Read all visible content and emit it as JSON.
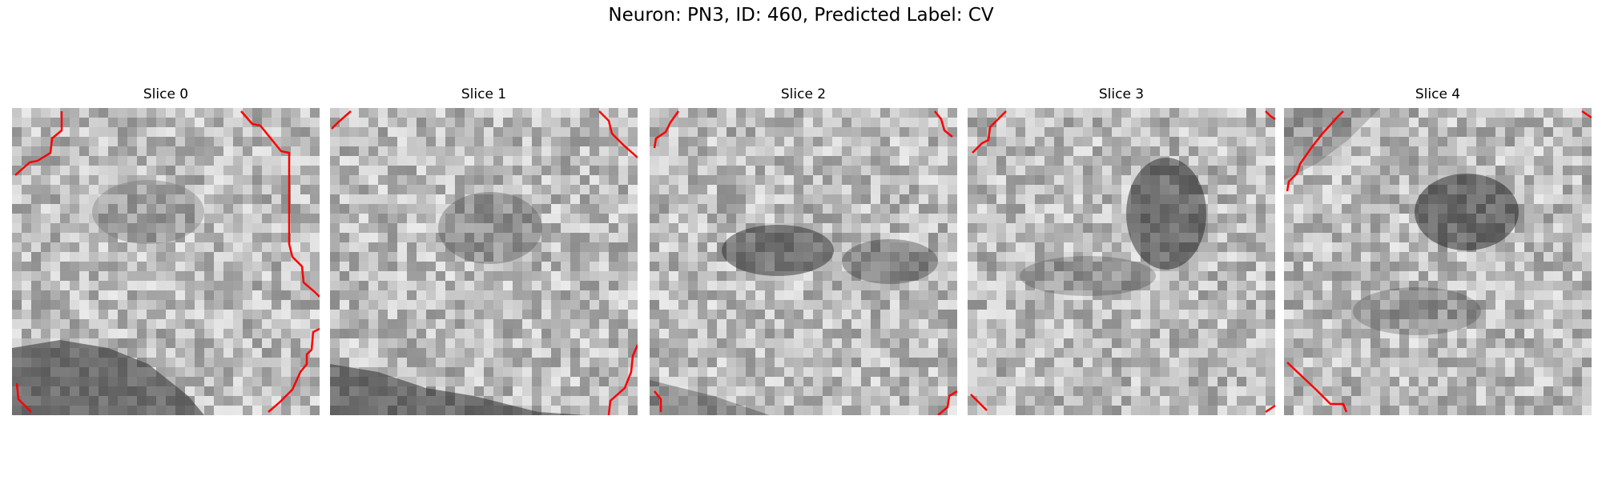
{
  "figure": {
    "title": "Neuron: PN3, ID: 460, Predicted Label: CV"
  },
  "panels": [
    {
      "title": "Slice 0"
    },
    {
      "title": "Slice 1"
    },
    {
      "title": "Slice 2"
    },
    {
      "title": "Slice 3"
    },
    {
      "title": "Slice 4"
    }
  ],
  "image": {
    "colormap": "grayscale",
    "grid_cells": 32,
    "contour_color": "#ff0000"
  }
}
